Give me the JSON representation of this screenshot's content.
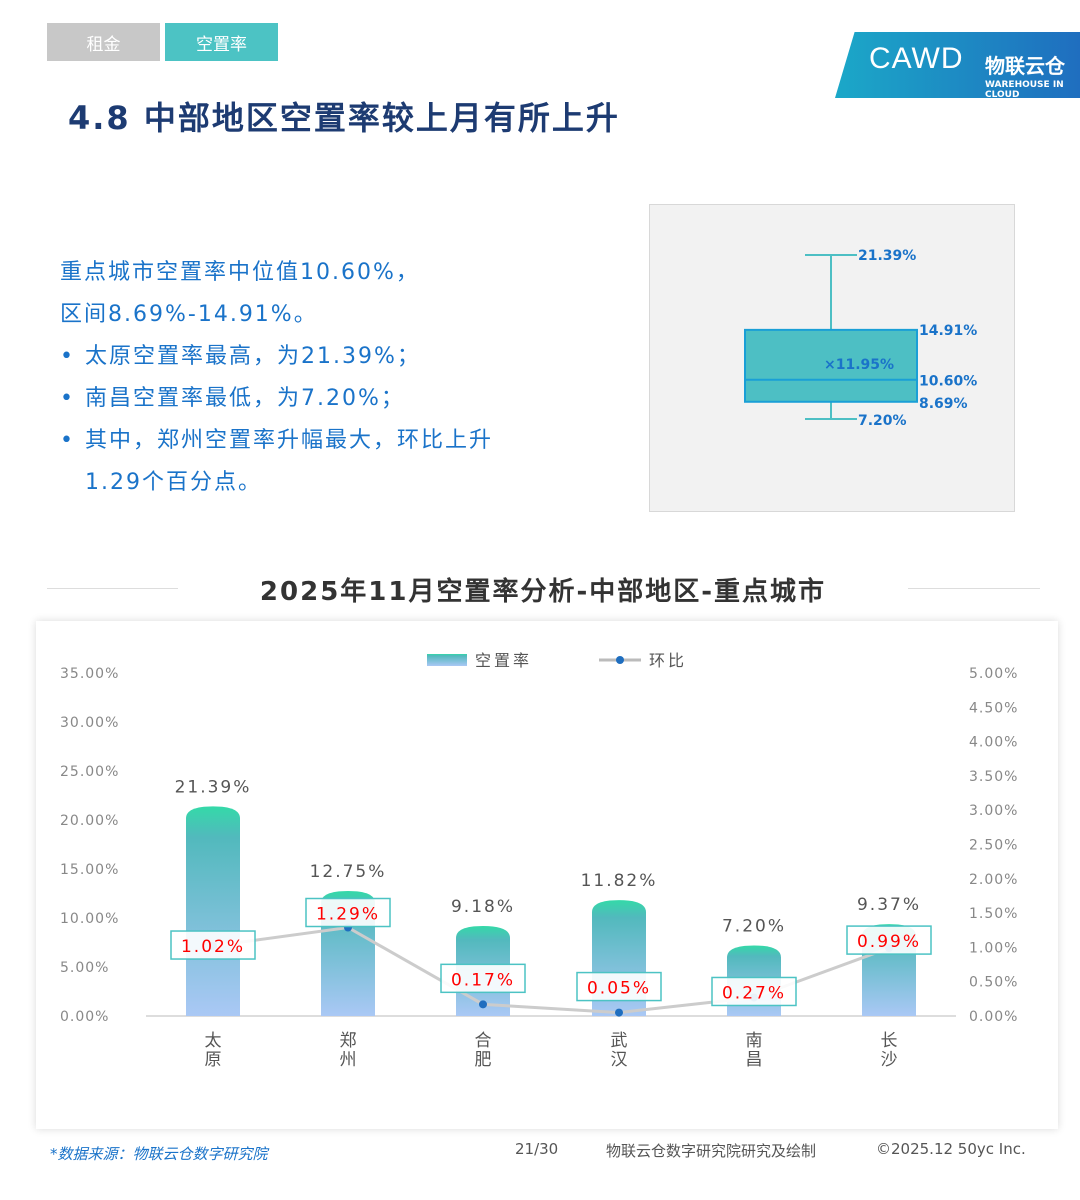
{
  "tabs": [
    {
      "label": "租金"
    },
    {
      "label": "空置率"
    }
  ],
  "logo": {
    "left": "CAWD",
    "right": "物联云仓",
    "right_sub": "WAREHOUSE IN CLOUD"
  },
  "title": "4.8 中部地区空置率较上月有所上升",
  "summary": [
    "重点城市空置率中位值10.60%，",
    "区间8.69%-14.91%。",
    "太原空置率最高，为21.39%；",
    "南昌空置率最低，为7.20%；",
    "其中，郑州空置率升幅最大，环比上升",
    "1.29个百分点。"
  ],
  "chart_data": [
    {
      "type": "box",
      "max": 21.39,
      "q3": 14.91,
      "mean": 11.95,
      "median": 10.6,
      "q1": 8.69,
      "min": 7.2,
      "labels": {
        "max": "21.39%",
        "q3": "14.91%",
        "mean": "×11.95%",
        "median": "10.60%",
        "q1": "8.69%",
        "min": "7.20%"
      },
      "color": "#4dbfc4"
    },
    {
      "type": "bar+line",
      "title": "2025年11月空置率分析-中部地区-重点城市",
      "categories": [
        "太原",
        "郑州",
        "合肥",
        "武汉",
        "南昌",
        "长沙"
      ],
      "series": [
        {
          "name": "空置率",
          "type": "bar",
          "axis": "left",
          "values": [
            21.39,
            12.75,
            9.18,
            11.82,
            7.2,
            9.37
          ],
          "labels": [
            "21.39%",
            "12.75%",
            "9.18%",
            "11.82%",
            "7.20%",
            "9.37%"
          ]
        },
        {
          "name": "环比",
          "type": "line",
          "axis": "right",
          "values": [
            1.02,
            1.29,
            0.17,
            0.05,
            0.27,
            0.99
          ],
          "labels": [
            "1.02%",
            "1.29%",
            "0.17%",
            "0.05%",
            "0.27%",
            "0.99%"
          ]
        }
      ],
      "left_axis": {
        "range": [
          0,
          35
        ],
        "ticks": [
          "0.00%",
          "5.00%",
          "10.00%",
          "15.00%",
          "20.00%",
          "25.00%",
          "30.00%",
          "35.00%"
        ]
      },
      "right_axis": {
        "range": [
          0,
          5
        ],
        "ticks": [
          "0.00%",
          "0.50%",
          "1.00%",
          "1.50%",
          "2.00%",
          "2.50%",
          "3.00%",
          "3.50%",
          "4.00%",
          "4.50%",
          "5.00%"
        ]
      },
      "legend": "top"
    }
  ],
  "footer": {
    "source": "*数据来源：物联云仓数字研究院",
    "page": "21/30",
    "credit": "物联云仓数字研究院研究及绘制",
    "copyright": "©2025.12 50yc Inc."
  }
}
